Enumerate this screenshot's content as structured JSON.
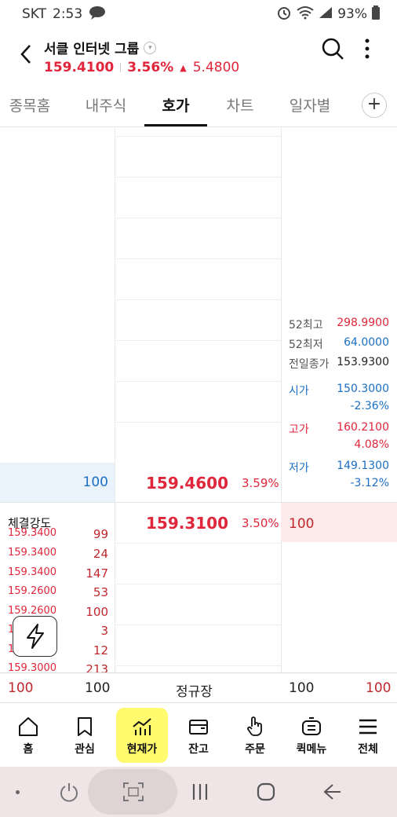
{
  "status_bar": {
    "carrier": "SKT",
    "time": "2:53",
    "battery": "93%"
  },
  "header": {
    "title": "서클 인터넷 그룹",
    "price": "159.4100",
    "change_pct": "3.56%",
    "change_amt": "5.4800",
    "up_color": "#e0263a"
  },
  "tabs": [
    {
      "label": "종목홈"
    },
    {
      "label": "내주식"
    },
    {
      "label": "호가"
    },
    {
      "label": "차트"
    },
    {
      "label": "일자별"
    }
  ],
  "stats": {
    "high52_label": "52최고",
    "high52": "298.9900",
    "low52_label": "52최저",
    "low52": "64.0000",
    "prev_close_label": "전일종가",
    "prev_close": "153.9300",
    "open_label": "시가",
    "open": "150.3000",
    "open_pct": "-2.36%",
    "high_label": "고가",
    "high": "160.2100",
    "high_pct": "4.08%",
    "low_label": "저가",
    "low": "149.1300",
    "low_pct": "-3.12%"
  },
  "orderbook": {
    "ask": {
      "volume": "100",
      "price": "159.4600",
      "pct": "3.59%"
    },
    "bid": {
      "volume": "100",
      "price": "159.3100",
      "pct": "3.50%"
    }
  },
  "trades": {
    "title": "체결강도",
    "rows": [
      {
        "price": "159.3400",
        "volume": "99"
      },
      {
        "price": "159.3400",
        "volume": "24"
      },
      {
        "price": "159.3400",
        "volume": "147"
      },
      {
        "price": "159.2600",
        "volume": "53"
      },
      {
        "price": "159.2600",
        "volume": "100"
      },
      {
        "price": "1",
        "volume": "3"
      },
      {
        "price": "1",
        "volume": "12"
      },
      {
        "price": "159.3000",
        "volume": "213"
      }
    ]
  },
  "summary": {
    "left1": "100",
    "left2": "100",
    "session": "정규장",
    "right1": "100",
    "right2": "100"
  },
  "nav": [
    {
      "label": "홈",
      "icon": "home-icon"
    },
    {
      "label": "관심",
      "icon": "bookmark-icon"
    },
    {
      "label": "현재가",
      "icon": "chart-icon"
    },
    {
      "label": "잔고",
      "icon": "wallet-icon"
    },
    {
      "label": "주문",
      "icon": "hand-icon"
    },
    {
      "label": "퀵메뉴",
      "icon": "menu-box-icon"
    },
    {
      "label": "전체",
      "icon": "hamburger-icon"
    }
  ],
  "colors": {
    "up": "#e0263a",
    "down": "#1a6fc4",
    "nav_active": "#fffa6e"
  }
}
